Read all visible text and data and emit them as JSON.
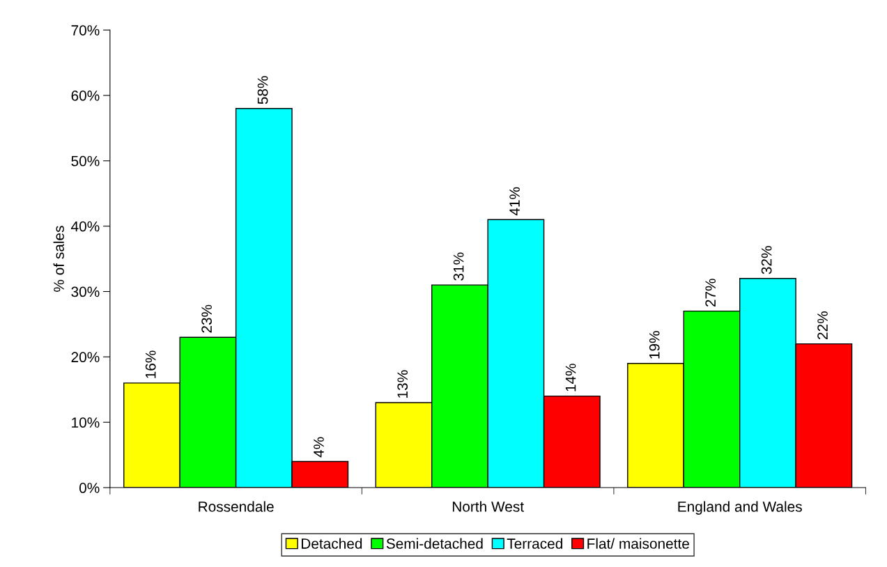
{
  "chart_data": {
    "type": "bar",
    "ylabel": "% of sales",
    "categories": [
      "Rossendale",
      "North West",
      "England and Wales"
    ],
    "series": [
      {
        "name": "Detached",
        "color": "#ffff00",
        "values": [
          16,
          13,
          19
        ],
        "value_labels": [
          "16%",
          "13%",
          "19%"
        ]
      },
      {
        "name": "Semi-detached",
        "color": "#00ff00",
        "values": [
          23,
          31,
          27
        ],
        "value_labels": [
          "23%",
          "31%",
          "27%"
        ]
      },
      {
        "name": "Terraced",
        "color": "#00ffff",
        "values": [
          58,
          41,
          32
        ],
        "value_labels": [
          "58%",
          "41%",
          "32%"
        ]
      },
      {
        "name": "Flat/ maisonette",
        "color": "#ff0000",
        "values": [
          4,
          14,
          22
        ],
        "value_labels": [
          "4%",
          "14%",
          "22%"
        ]
      }
    ],
    "ylim": [
      0,
      70
    ],
    "yticks": [
      {
        "value": 0,
        "label": "0%"
      },
      {
        "value": 10,
        "label": "10%"
      },
      {
        "value": 20,
        "label": "20%"
      },
      {
        "value": 30,
        "label": "30%"
      },
      {
        "value": 40,
        "label": "40%"
      },
      {
        "value": 50,
        "label": "50%"
      },
      {
        "value": 60,
        "label": "60%"
      },
      {
        "value": 70,
        "label": "70%"
      }
    ],
    "grid": false,
    "legend": "bottom"
  }
}
